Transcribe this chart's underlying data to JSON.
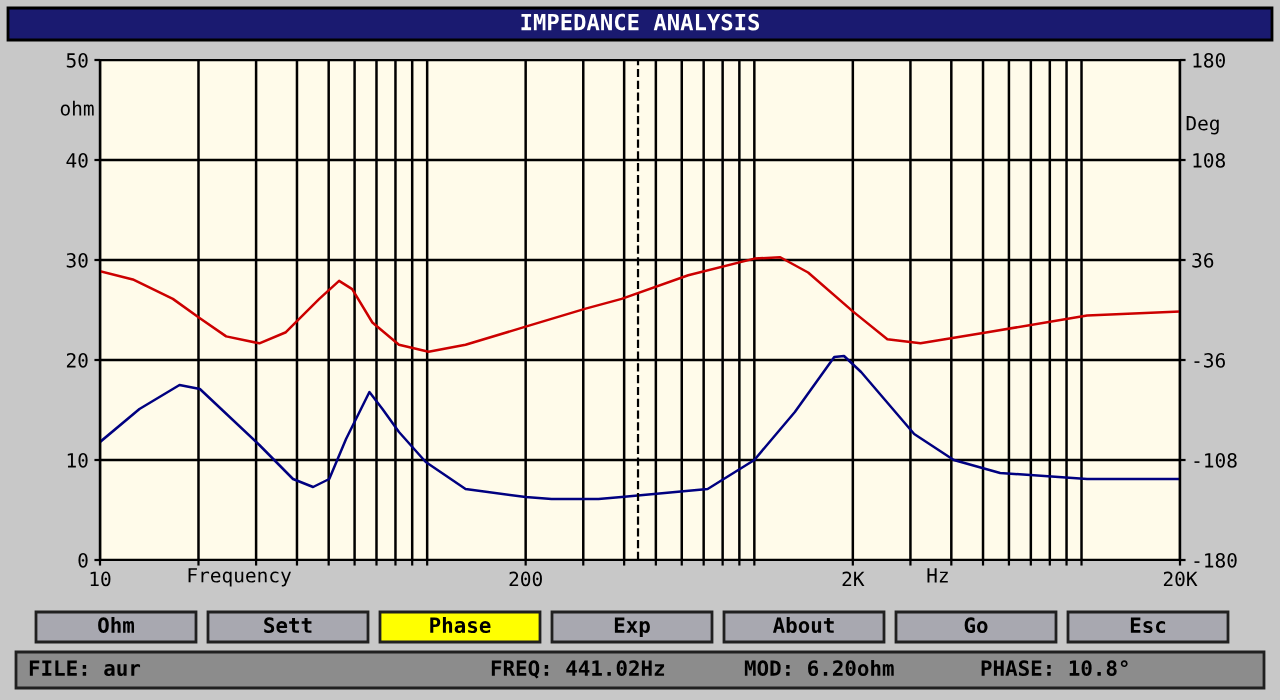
{
  "chart_data": {
    "type": "line",
    "title": "IMPEDANCE ANALYSIS",
    "xlabel": "Frequency",
    "ylabel": "ohm",
    "y2label": "Deg",
    "log": "x",
    "grid": true,
    "legend": false,
    "marker": "none",
    "line_style": "solid",
    "xlim": [
      10,
      20000
    ],
    "xticks": [
      10,
      {
        "value": 20,
        "label": null
      },
      {
        "value": 30,
        "label": null
      },
      {
        "value": 40,
        "label": null
      },
      {
        "value": 50,
        "label": null
      },
      {
        "value": 60,
        "label": null
      },
      {
        "value": 70,
        "label": null
      },
      {
        "value": 80,
        "label": null
      },
      {
        "value": 90,
        "label": null
      },
      {
        "value": 100,
        "label": null
      },
      200,
      {
        "value": 300,
        "label": null
      },
      {
        "value": 400,
        "label": null
      },
      {
        "value": 500,
        "label": null
      },
      {
        "value": 600,
        "label": null
      },
      {
        "value": 700,
        "label": null
      },
      {
        "value": 800,
        "label": null
      },
      {
        "value": 900,
        "label": null
      },
      {
        "value": 1000,
        "label": null
      },
      {
        "value": 2000,
        "label": "2K"
      },
      {
        "value": 3000,
        "label": null
      },
      {
        "value": 4000,
        "label": null
      },
      {
        "value": 5000,
        "label": null
      },
      {
        "value": 6000,
        "label": null
      },
      {
        "value": 7000,
        "label": null
      },
      {
        "value": 8000,
        "label": null
      },
      {
        "value": 9000,
        "label": null
      },
      {
        "value": 10000,
        "label": null
      },
      {
        "value": 20000,
        "label": "20K"
      }
    ],
    "ylim": [
      0,
      50
    ],
    "yticks": [
      0,
      10,
      20,
      30,
      40,
      50
    ],
    "y2lim": [
      -180,
      180
    ],
    "y2ticks": [
      -180,
      -108,
      -36,
      36,
      108,
      180
    ],
    "ref_lines": [
      {
        "axis": "x",
        "value": 441.02,
        "line_style": "dashed",
        "color": "#000000"
      }
    ],
    "series": [
      {
        "color": "#000080",
        "x": [
          10,
          13.2,
          17.5,
          20.2,
          30.7,
          38.9,
          44.8,
          50.2,
          56.5,
          66.6,
          73,
          82,
          99,
          131,
          200,
          240,
          334,
          393,
          720,
          1000,
          1330,
          1755,
          1880,
          2120,
          3080,
          4070,
          5640,
          10400,
          20000
        ],
        "values": [
          11.8,
          15.1,
          17.5,
          17.1,
          11.5,
          8.1,
          7.3,
          8.1,
          12.1,
          16.8,
          15.1,
          12.8,
          9.8,
          7.1,
          6.3,
          6.1,
          6.1,
          6.3,
          7.1,
          10,
          14.8,
          20.3,
          20.4,
          18.8,
          12.6,
          10,
          8.7,
          8.1,
          8.1
        ]
      },
      {
        "color": "#cc0000",
        "axis": "y2",
        "x": [
          10,
          12.6,
          16.7,
          20.2,
          24.3,
          30.7,
          37,
          46.8,
          53.8,
          59,
          68,
          82,
          101,
          131,
          200,
          305,
          393,
          628,
          1000,
          1200,
          1460,
          2000,
          2550,
          3220,
          5160,
          10400,
          20000
        ],
        "values": [
          28,
          22,
          8,
          -6,
          -19,
          -24,
          -16,
          8,
          21,
          15,
          -9,
          -25,
          -30,
          -25,
          -12,
          1,
          8,
          25,
          37,
          38,
          27,
          -1,
          -21,
          -24,
          -16,
          -4,
          -1
        ]
      }
    ],
    "annotations": [
      "Hz",
      "Ohm",
      "Sett",
      "Phase",
      "Exp",
      "About",
      "Go",
      "Esc",
      "FILE: aur",
      "FREQ: 441.02Hz",
      "MOD: 6.20ohm",
      "PHASE: 10.8°"
    ]
  }
}
